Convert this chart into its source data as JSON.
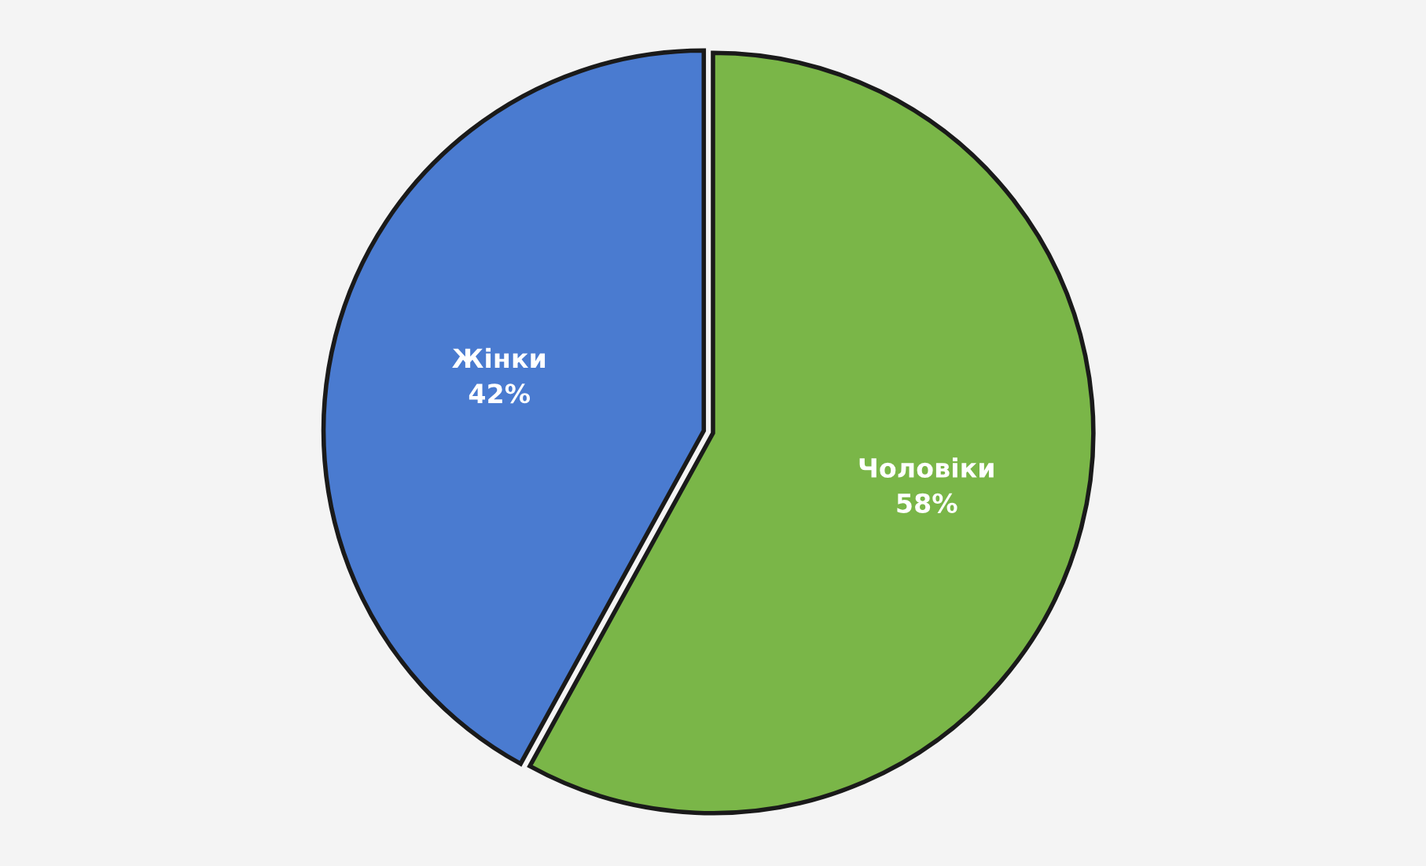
{
  "chart_data": {
    "type": "pie",
    "categories": [
      "Чоловіки",
      "Жінки"
    ],
    "values": [
      58,
      42
    ],
    "colors": [
      "#7ab648",
      "#4a7bd0"
    ],
    "value_labels": [
      "58%",
      "42%"
    ]
  }
}
